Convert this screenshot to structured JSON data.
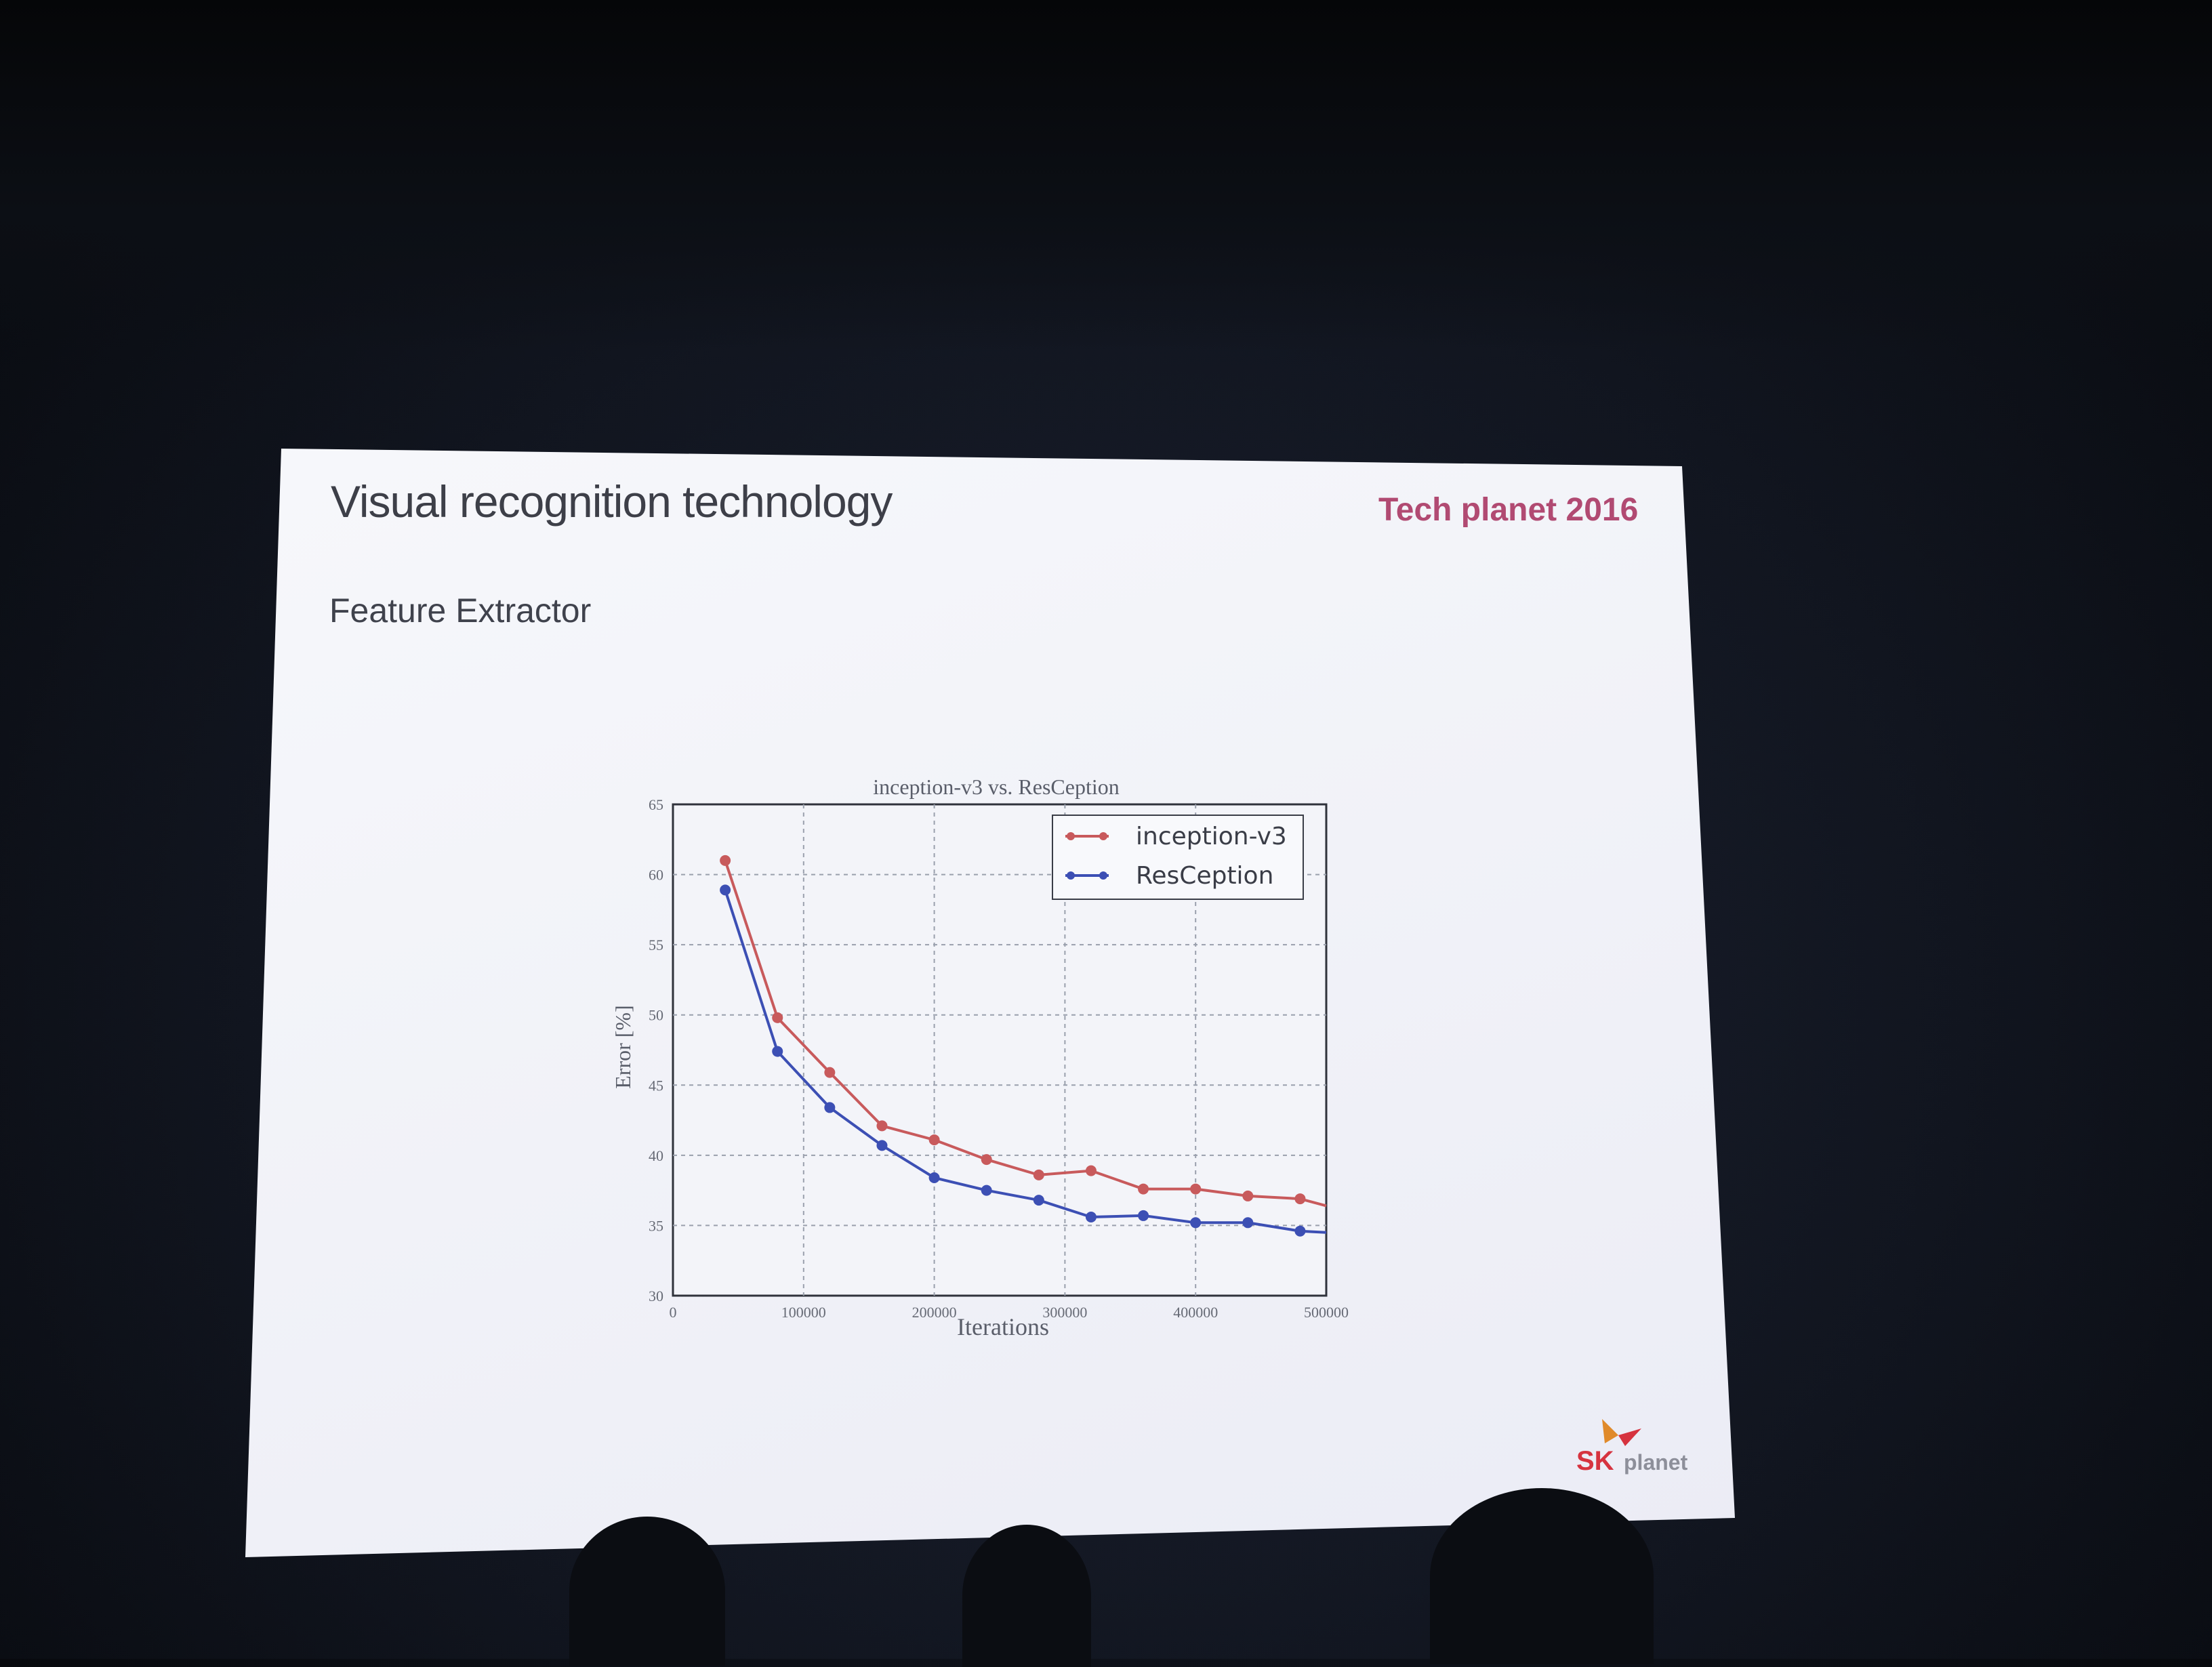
{
  "slide": {
    "title": "Visual recognition technology",
    "event": "Tech planet 2016",
    "subtitle": "Feature Extractor",
    "logo": {
      "brand": "SK",
      "name": "planet"
    }
  },
  "colors": {
    "inception": "#c85a5c",
    "resception": "#3c4fb4",
    "event_text": "#b14a72",
    "logo_red": "#d6333f"
  },
  "chart_data": {
    "type": "line",
    "title": "inception-v3 vs. ResCeption",
    "xlabel": "Iterations",
    "ylabel": "Error [%]",
    "xlim": [
      0,
      500000
    ],
    "ylim": [
      30,
      65
    ],
    "xticks": [
      0,
      100000,
      200000,
      300000,
      400000,
      500000
    ],
    "xtick_labels": [
      "0",
      "100000",
      "200000",
      "300000",
      "400000",
      "500000"
    ],
    "yticks": [
      30,
      35,
      40,
      45,
      50,
      55,
      60,
      65
    ],
    "ytick_labels": [
      "30",
      "35",
      "40",
      "45",
      "50",
      "55",
      "60",
      "65"
    ],
    "grid": true,
    "legend_position": "top-right",
    "series": [
      {
        "name": "inception-v3",
        "color": "#c85a5c",
        "x": [
          40000,
          80000,
          120000,
          160000,
          200000,
          240000,
          280000,
          320000,
          360000,
          400000,
          440000,
          480000,
          500000
        ],
        "y": [
          61.0,
          49.8,
          45.9,
          42.1,
          41.1,
          39.7,
          38.6,
          38.9,
          37.6,
          37.6,
          37.1,
          36.9,
          36.4
        ]
      },
      {
        "name": "ResCeption",
        "color": "#3c4fb4",
        "x": [
          40000,
          80000,
          120000,
          160000,
          200000,
          240000,
          280000,
          320000,
          360000,
          400000,
          440000,
          480000,
          500000
        ],
        "y": [
          58.9,
          47.4,
          43.4,
          40.7,
          38.4,
          37.5,
          36.8,
          35.6,
          35.7,
          35.2,
          35.2,
          34.6,
          34.5
        ]
      }
    ]
  }
}
